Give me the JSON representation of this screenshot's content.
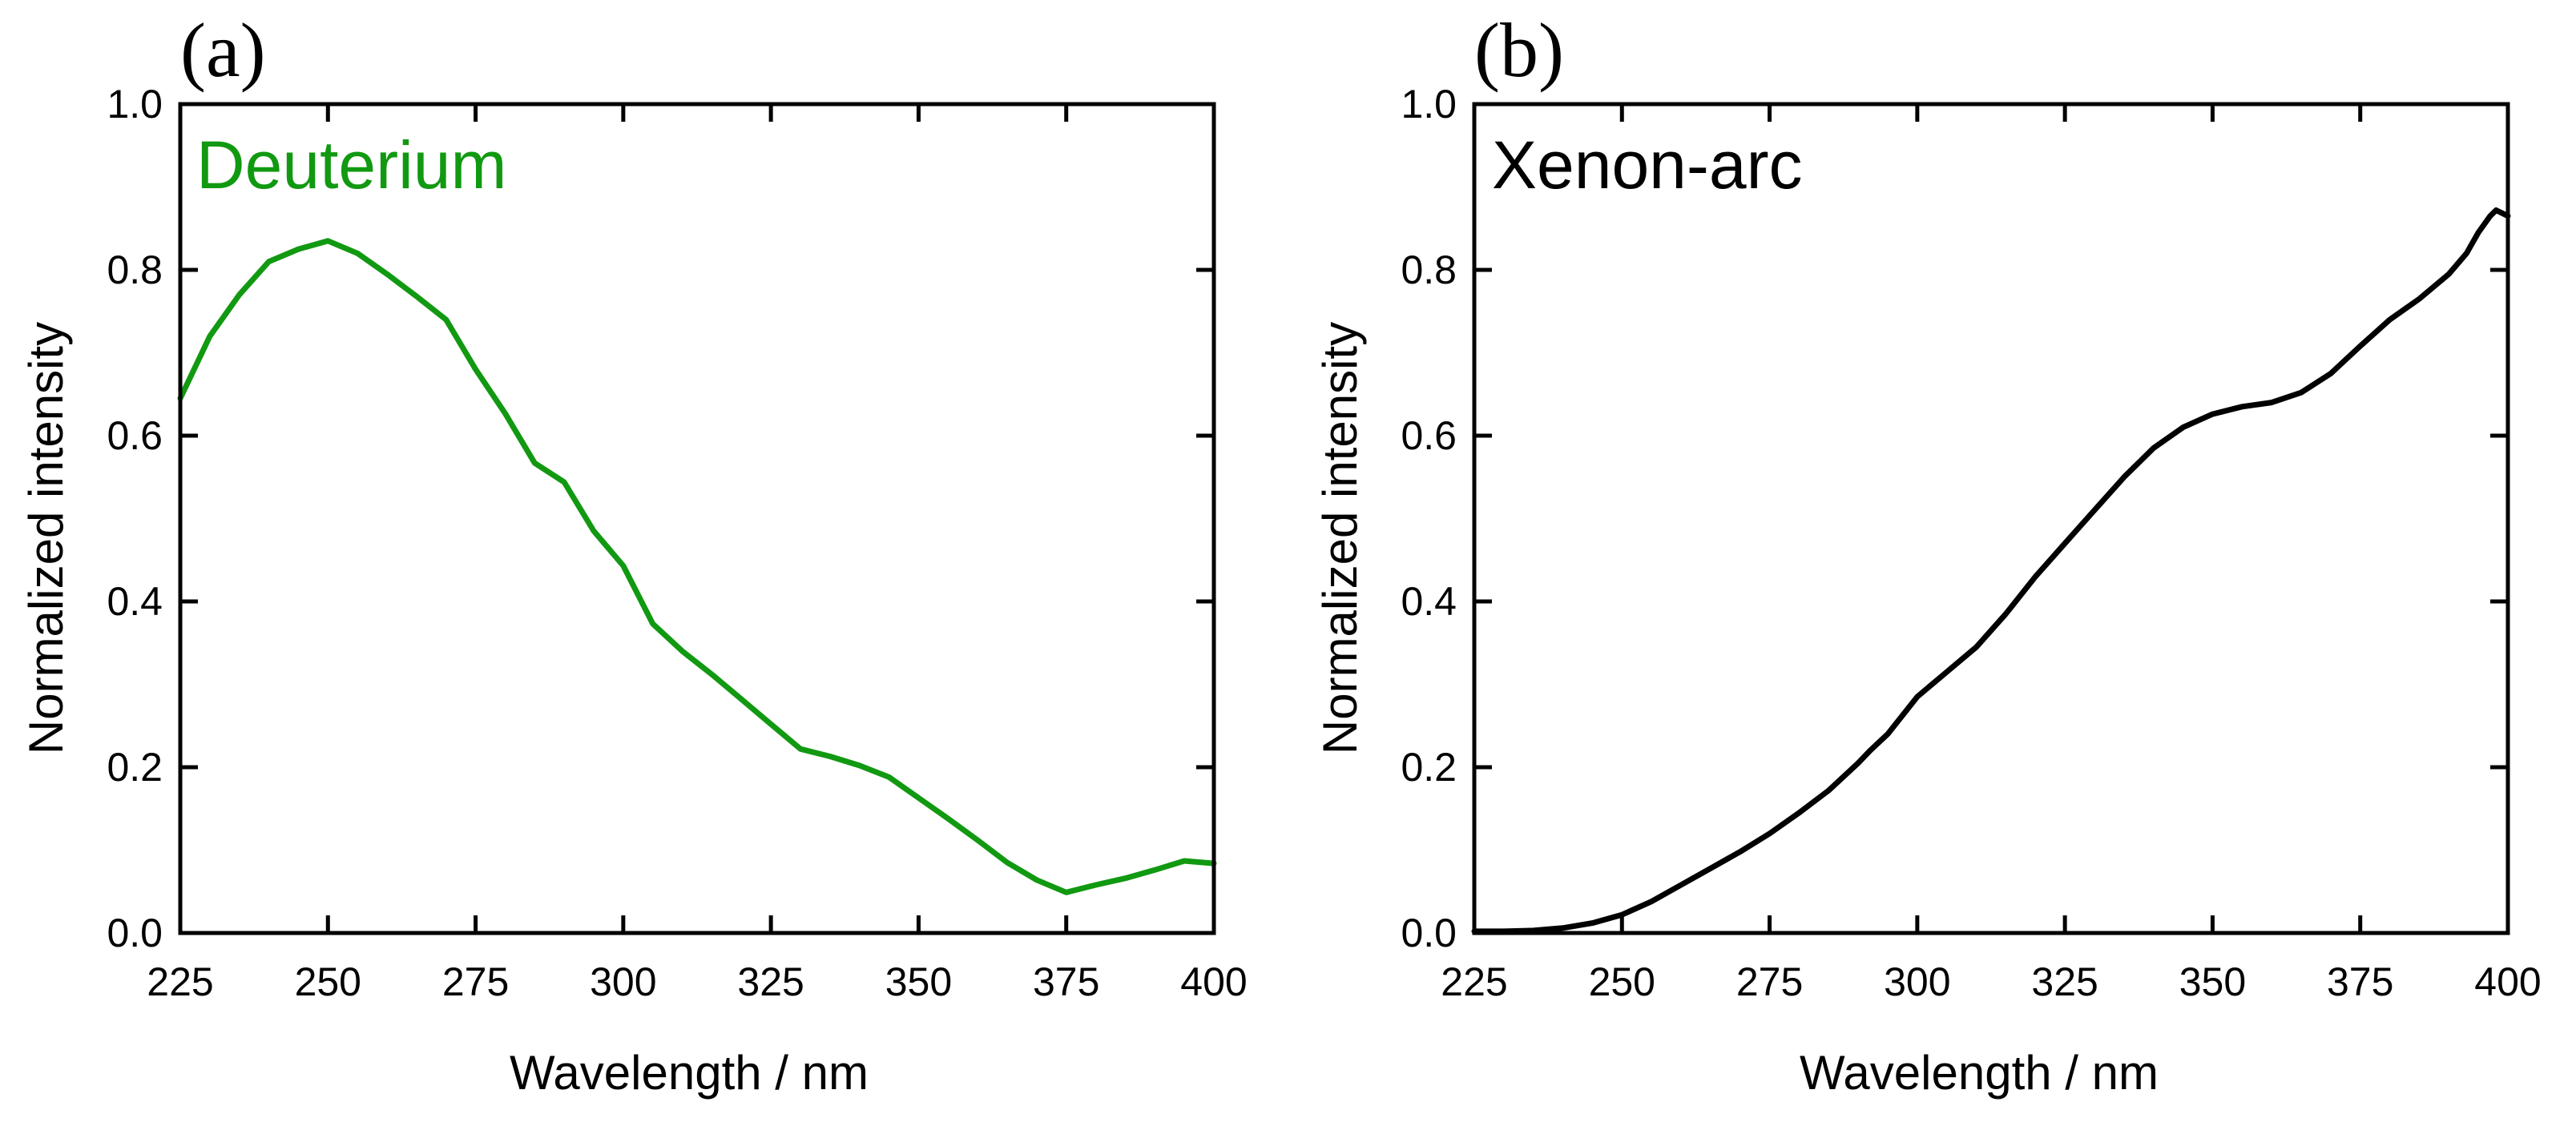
{
  "chart_data": [
    {
      "type": "line",
      "panel_label": "(a)",
      "title": "",
      "xlabel": "Wavelength / nm",
      "ylabel": "Normalized intensity",
      "xlim": [
        225,
        400
      ],
      "ylim": [
        0.0,
        1.0
      ],
      "xticks": [
        225,
        250,
        275,
        300,
        325,
        350,
        375,
        400
      ],
      "yticks": [
        0.0,
        0.2,
        0.4,
        0.6,
        0.8,
        1.0
      ],
      "xtick_labels": [
        "225",
        "250",
        "275",
        "300",
        "325",
        "350",
        "375",
        "400"
      ],
      "ytick_labels": [
        "0.0",
        "0.2",
        "0.4",
        "0.6",
        "0.8",
        "1.0"
      ],
      "grid": false,
      "annotation": "Deuterium",
      "annotation_color": "#119911",
      "series": [
        {
          "name": "Deuterium",
          "color": "#119911",
          "x": [
            225,
            230,
            235,
            240,
            245,
            250,
            255,
            260,
            265,
            270,
            275,
            280,
            285,
            290,
            295,
            300,
            305,
            310,
            315,
            320,
            325,
            330,
            335,
            340,
            345,
            350,
            355,
            360,
            365,
            370,
            375,
            380,
            385,
            390,
            395,
            400
          ],
          "values": [
            0.645,
            0.72,
            0.77,
            0.81,
            0.825,
            0.835,
            0.82,
            0.795,
            0.768,
            0.74,
            0.68,
            0.627,
            0.567,
            0.544,
            0.485,
            0.443,
            0.373,
            0.34,
            0.312,
            0.282,
            0.252,
            0.222,
            0.213,
            0.202,
            0.188,
            0.163,
            0.138,
            0.112,
            0.085,
            0.064,
            0.049,
            0.058,
            0.066,
            0.076,
            0.087,
            0.084
          ]
        }
      ]
    },
    {
      "type": "line",
      "panel_label": "(b)",
      "title": "",
      "xlabel": "Wavelength / nm",
      "ylabel": "Normalized intensity",
      "xlim": [
        225,
        400
      ],
      "ylim": [
        0.0,
        1.0
      ],
      "xticks": [
        225,
        250,
        275,
        300,
        325,
        350,
        375,
        400
      ],
      "yticks": [
        0.0,
        0.2,
        0.4,
        0.6,
        0.8,
        1.0
      ],
      "xtick_labels": [
        "225",
        "250",
        "275",
        "300",
        "325",
        "350",
        "375",
        "400"
      ],
      "ytick_labels": [
        "0.0",
        "0.2",
        "0.4",
        "0.6",
        "0.8",
        "1.0"
      ],
      "grid": false,
      "annotation": "Xenon-arc",
      "annotation_color": "#000000",
      "series": [
        {
          "name": "Xenon-arc",
          "color": "#000000",
          "x": [
            225,
            230,
            235,
            240,
            245,
            250,
            255,
            260,
            265,
            270,
            275,
            280,
            285,
            290,
            292,
            295,
            300,
            305,
            310,
            315,
            320,
            325,
            330,
            335,
            340,
            345,
            350,
            355,
            360,
            365,
            370,
            375,
            380,
            385,
            390,
            393,
            395,
            397,
            398,
            400
          ],
          "values": [
            0.002,
            0.002,
            0.003,
            0.006,
            0.012,
            0.022,
            0.038,
            0.058,
            0.078,
            0.098,
            0.12,
            0.145,
            0.172,
            0.205,
            0.22,
            0.24,
            0.285,
            0.315,
            0.345,
            0.385,
            0.43,
            0.47,
            0.51,
            0.55,
            0.585,
            0.61,
            0.626,
            0.635,
            0.64,
            0.652,
            0.675,
            0.708,
            0.74,
            0.765,
            0.795,
            0.82,
            0.845,
            0.865,
            0.872,
            0.865
          ]
        }
      ]
    }
  ]
}
